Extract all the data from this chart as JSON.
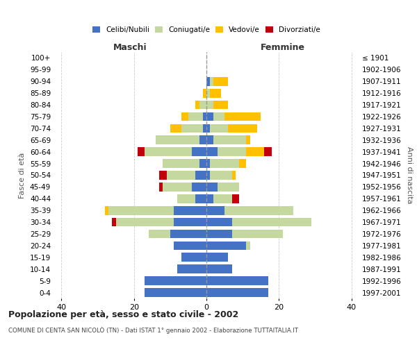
{
  "age_groups": [
    "0-4",
    "5-9",
    "10-14",
    "15-19",
    "20-24",
    "25-29",
    "30-34",
    "35-39",
    "40-44",
    "45-49",
    "50-54",
    "55-59",
    "60-64",
    "65-69",
    "70-74",
    "75-79",
    "80-84",
    "85-89",
    "90-94",
    "95-99",
    "100+"
  ],
  "birth_years": [
    "1997-2001",
    "1992-1996",
    "1987-1991",
    "1982-1986",
    "1977-1981",
    "1972-1976",
    "1967-1971",
    "1962-1966",
    "1957-1961",
    "1952-1956",
    "1947-1951",
    "1942-1946",
    "1937-1941",
    "1932-1936",
    "1927-1931",
    "1922-1926",
    "1917-1921",
    "1912-1916",
    "1907-1911",
    "1902-1906",
    "≤ 1901"
  ],
  "males": {
    "celibi": [
      17,
      17,
      8,
      7,
      9,
      10,
      9,
      9,
      3,
      4,
      3,
      2,
      4,
      2,
      1,
      1,
      0,
      0,
      0,
      0,
      0
    ],
    "coniugati": [
      0,
      0,
      0,
      0,
      0,
      6,
      16,
      18,
      5,
      8,
      8,
      10,
      13,
      12,
      6,
      4,
      2,
      0,
      0,
      0,
      0
    ],
    "vedovi": [
      0,
      0,
      0,
      0,
      0,
      0,
      0,
      1,
      0,
      0,
      0,
      0,
      0,
      0,
      3,
      2,
      1,
      1,
      0,
      0,
      0
    ],
    "divorziati": [
      0,
      0,
      0,
      0,
      0,
      0,
      1,
      0,
      0,
      1,
      2,
      0,
      2,
      0,
      0,
      0,
      0,
      0,
      0,
      0,
      0
    ]
  },
  "females": {
    "nubili": [
      17,
      17,
      7,
      6,
      11,
      7,
      7,
      5,
      2,
      3,
      1,
      1,
      3,
      2,
      1,
      2,
      0,
      0,
      1,
      0,
      0
    ],
    "coniugate": [
      0,
      0,
      0,
      0,
      1,
      14,
      22,
      19,
      5,
      6,
      6,
      8,
      8,
      9,
      5,
      3,
      2,
      1,
      1,
      0,
      0
    ],
    "vedove": [
      0,
      0,
      0,
      0,
      0,
      0,
      0,
      0,
      0,
      0,
      1,
      2,
      5,
      1,
      8,
      10,
      4,
      3,
      4,
      0,
      0
    ],
    "divorziate": [
      0,
      0,
      0,
      0,
      0,
      0,
      0,
      0,
      2,
      0,
      0,
      0,
      2,
      0,
      0,
      0,
      0,
      0,
      0,
      0,
      0
    ]
  },
  "color_celibi": "#4472c4",
  "color_coniugati": "#c5d8a0",
  "color_vedovi": "#ffc000",
  "color_divorziati": "#c0000b",
  "xlim": 42,
  "title": "Popolazione per età, sesso e stato civile - 2002",
  "subtitle": "COMUNE DI CENTA SAN NICOLÒ (TN) - Dati ISTAT 1° gennaio 2002 - Elaborazione TUTTAITALIA.IT",
  "ylabel": "Fasce di età",
  "ylabel_right": "Anni di nascita",
  "xlabel_left": "Maschi",
  "xlabel_right": "Femmine"
}
